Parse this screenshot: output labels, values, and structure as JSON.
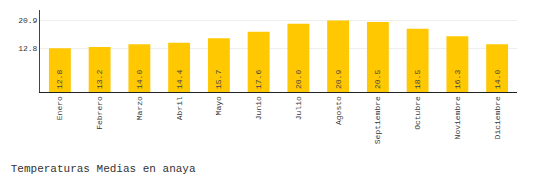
{
  "chart_data": {
    "type": "bar",
    "title": "Temperaturas Medias en anaya",
    "categories": [
      "Enero",
      "Febrero",
      "Marzo",
      "Abril",
      "Mayo",
      "Junio",
      "Julio",
      "Agosto",
      "Septiembre",
      "Octubre",
      "Noviembre",
      "Diciembre"
    ],
    "values": [
      12.8,
      13.2,
      14.0,
      14.4,
      15.7,
      17.6,
      20.0,
      20.9,
      20.5,
      18.5,
      16.3,
      14.0
    ],
    "value_labels": [
      "12.8",
      "13.2",
      "14.0",
      "14.4",
      "15.7",
      "17.6",
      "20.0",
      "20.9",
      "20.5",
      "18.5",
      "16.3",
      "14.0"
    ],
    "data_labels": true,
    "color": "#FFC800",
    "ylim": [
      0,
      24.0
    ],
    "yticks": [
      12.8,
      20.9
    ],
    "grid": true
  }
}
